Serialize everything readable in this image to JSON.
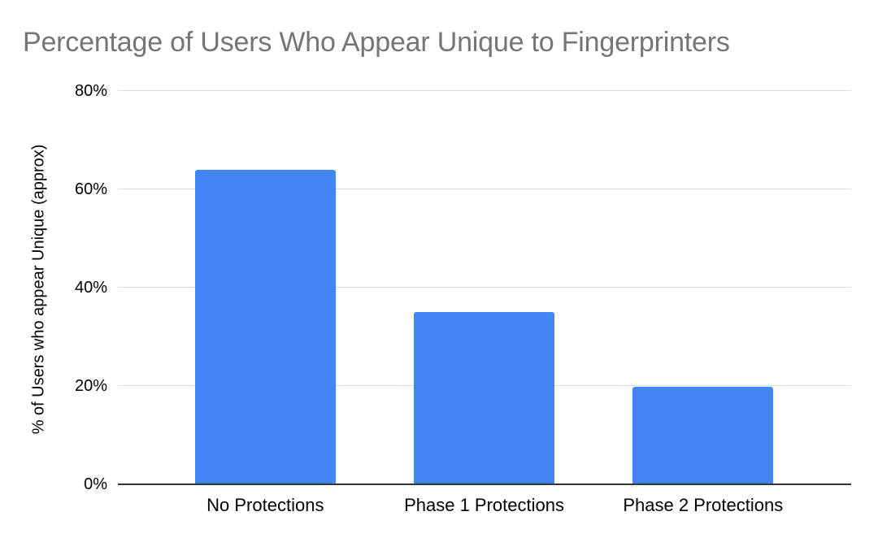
{
  "chart_data": {
    "type": "bar",
    "title": "Percentage of Users Who Appear Unique to Fingerprinters",
    "ylabel": "% of Users who appear Unique (approx)",
    "xlabel": "",
    "categories": [
      "No Protections",
      "Phase 1 Protections",
      "Phase 2 Protections"
    ],
    "values": [
      64,
      35,
      19.8
    ],
    "yticks": [
      0,
      20,
      40,
      60,
      80
    ],
    "ytick_labels": [
      "0%",
      "20%",
      "40%",
      "60%",
      "80%"
    ],
    "ylim": [
      0,
      80
    ],
    "grid": true,
    "legend": "none",
    "colors": {
      "bar": "#4285f4",
      "title": "#757575",
      "axis_line": "#333333",
      "gridline": "#dcdcdc",
      "label": "#000000"
    },
    "layout": {
      "bar_centers_pct": [
        20.1,
        49.95,
        79.8
      ],
      "bar_width_pct": 19.2
    }
  }
}
